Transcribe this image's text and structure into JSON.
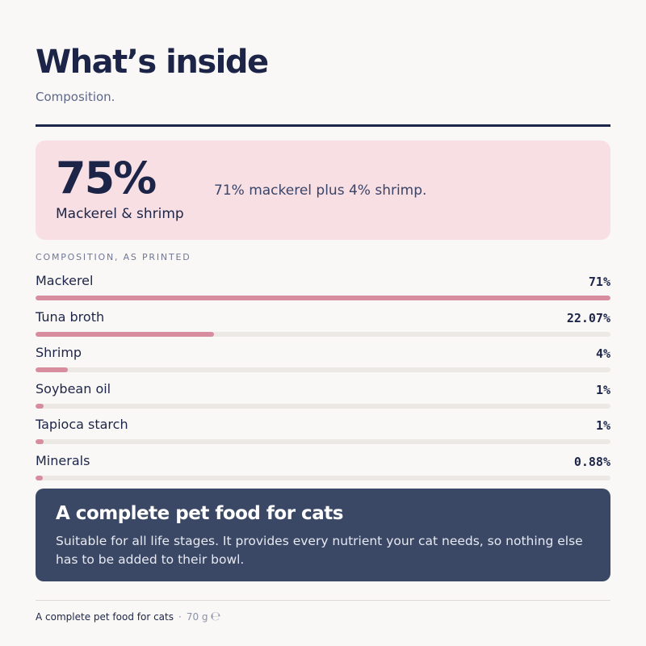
{
  "header": {
    "title": "What’s inside",
    "subtitle": "Composition."
  },
  "highlight": {
    "percent": "75%",
    "label": "Mackerel & shrimp",
    "description": "71% mackerel plus 4% shrimp."
  },
  "composition": {
    "section_label": "COMPOSITION, AS PRINTED",
    "items": [
      {
        "name": "Mackerel",
        "value_label": "71%",
        "fraction": 0.71
      },
      {
        "name": "Tuna broth",
        "value_label": "22.07%",
        "fraction": 0.2207
      },
      {
        "name": "Shrimp",
        "value_label": "4%",
        "fraction": 0.04
      },
      {
        "name": "Soybean oil",
        "value_label": "1%",
        "fraction": 0.01
      },
      {
        "name": "Tapioca starch",
        "value_label": "1%",
        "fraction": 0.01
      },
      {
        "name": "Minerals",
        "value_label": "0.88%",
        "fraction": 0.0088
      }
    ],
    "bar_color": "#d88d9f",
    "track_color": "#ece8e4"
  },
  "note": {
    "title": "A complete pet food for cats",
    "body": "Suitable for all life stages. It provides every nutrient your cat needs, so nothing else has to be added to their bowl."
  },
  "footer": {
    "product": "A complete pet food for cats",
    "separator": "·",
    "weight": "70 g",
    "estimated_mark": "℮"
  }
}
